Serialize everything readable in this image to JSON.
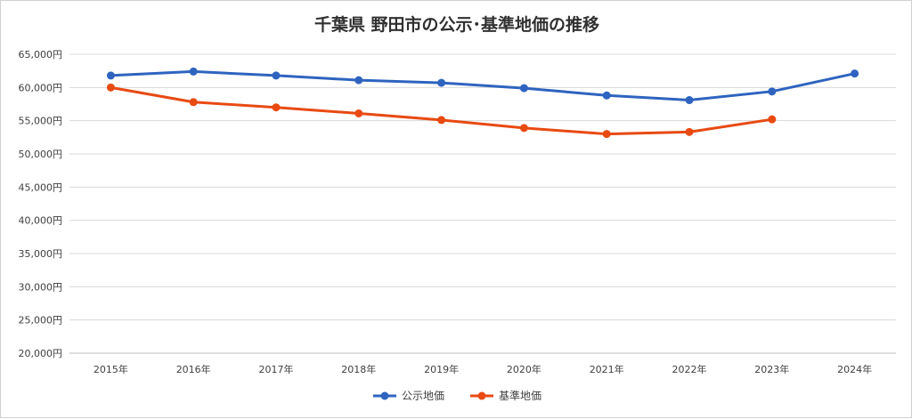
{
  "chart_data": {
    "type": "line",
    "title": "千葉県 野田市の公示･基準地価の推移",
    "categories": [
      "2015年",
      "2016年",
      "2017年",
      "2018年",
      "2019年",
      "2020年",
      "2021年",
      "2022年",
      "2023年",
      "2024年"
    ],
    "series": [
      {
        "name": "公示地価",
        "color": "#2e64bf",
        "values": [
          61800,
          62400,
          61800,
          61100,
          60700,
          59900,
          58800,
          58100,
          59400,
          62100
        ]
      },
      {
        "name": "基準地価",
        "color": "#e84a12",
        "values": [
          60000,
          57800,
          57000,
          56100,
          55100,
          53900,
          53000,
          53300,
          55200,
          null
        ]
      }
    ],
    "ylim": [
      20000,
      65000
    ],
    "yticks": [
      20000,
      25000,
      30000,
      35000,
      40000,
      45000,
      50000,
      55000,
      60000,
      65000
    ],
    "ytick_labels": [
      "20,000円",
      "25,000円",
      "30,000円",
      "35,000円",
      "40,000円",
      "45,000円",
      "50,000円",
      "55,000円",
      "60,000円",
      "65,000円"
    ],
    "grid": true,
    "legend_position": "bottom"
  }
}
